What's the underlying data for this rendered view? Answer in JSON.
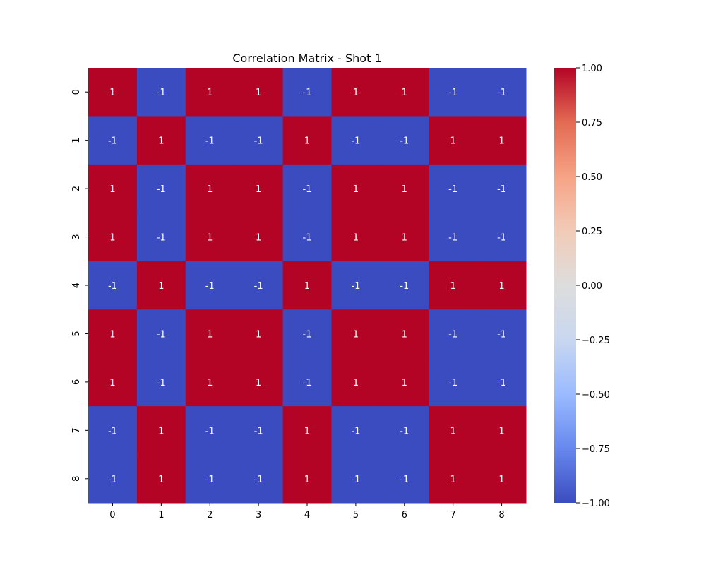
{
  "chart_data": {
    "type": "heatmap",
    "title": "Correlation Matrix - Shot 1",
    "xlabel": "",
    "ylabel": "",
    "x_categories": [
      "0",
      "1",
      "2",
      "3",
      "4",
      "5",
      "6",
      "7",
      "8"
    ],
    "y_categories": [
      "0",
      "1",
      "2",
      "3",
      "4",
      "5",
      "6",
      "7",
      "8"
    ],
    "values": [
      [
        1,
        -1,
        1,
        1,
        -1,
        1,
        1,
        -1,
        -1
      ],
      [
        -1,
        1,
        -1,
        -1,
        1,
        -1,
        -1,
        1,
        1
      ],
      [
        1,
        -1,
        1,
        1,
        -1,
        1,
        1,
        -1,
        -1
      ],
      [
        1,
        -1,
        1,
        1,
        -1,
        1,
        1,
        -1,
        -1
      ],
      [
        -1,
        1,
        -1,
        -1,
        1,
        -1,
        -1,
        1,
        1
      ],
      [
        1,
        -1,
        1,
        1,
        -1,
        1,
        1,
        -1,
        -1
      ],
      [
        1,
        -1,
        1,
        1,
        -1,
        1,
        1,
        -1,
        -1
      ],
      [
        -1,
        1,
        -1,
        -1,
        1,
        -1,
        -1,
        1,
        1
      ],
      [
        -1,
        1,
        -1,
        -1,
        1,
        -1,
        -1,
        1,
        1
      ]
    ],
    "annotations": true,
    "colormap": "coolwarm",
    "colormap_stops": [
      "#3b4cc0",
      "#6788ee",
      "#9abbff",
      "#c9d7f0",
      "#dddddd",
      "#f2cbb7",
      "#f6a385",
      "#e36a53",
      "#b40426"
    ],
    "vmin": -1,
    "vmax": 1,
    "colorbar_ticks": [
      -1.0,
      -0.75,
      -0.5,
      -0.25,
      0.0,
      0.25,
      0.5,
      0.75,
      1.0
    ],
    "colorbar_tick_labels": [
      "−1.00",
      "−0.75",
      "−0.50",
      "−0.25",
      "0.00",
      "0.25",
      "0.50",
      "0.75",
      "1.00"
    ],
    "legend": "colorbar-right",
    "grid": false
  }
}
